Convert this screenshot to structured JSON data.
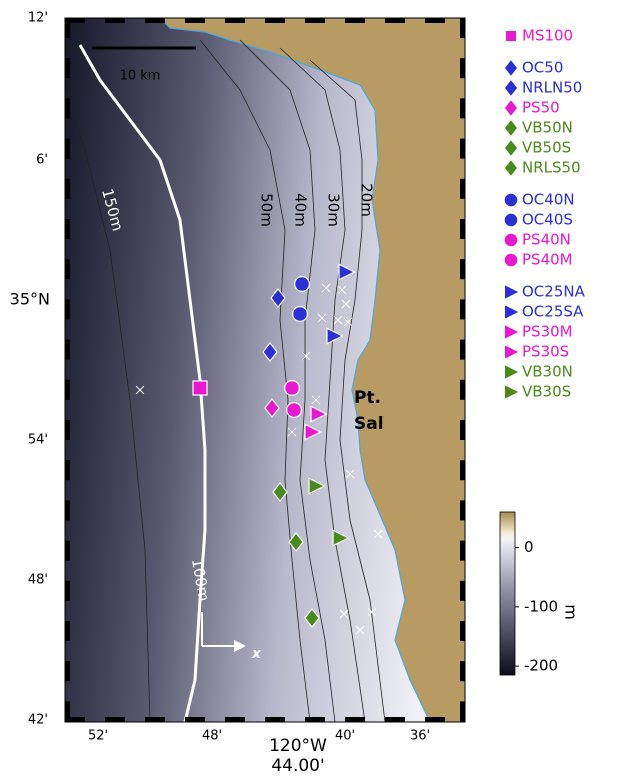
{
  "map": {
    "scale_bar": "10 km",
    "contour_labels": [
      "150m",
      "100m",
      "50m",
      "40m",
      "30m",
      "20m"
    ],
    "place": [
      "Pt.",
      "Sal"
    ],
    "axis_arrow": "x",
    "lat_ticks": [
      "12'",
      "6'",
      "35°N",
      "54'",
      "48'",
      "42'"
    ],
    "lon_ticks": [
      "52'",
      "48'",
      "40'",
      "36'"
    ],
    "lon_center": [
      "120°W",
      "44.00'"
    ]
  },
  "legend": [
    [
      {
        "label": "MS100",
        "marker": "square",
        "color": "#e817d0"
      }
    ],
    [
      {
        "label": "OC50",
        "marker": "diamond",
        "color": "#2a2fd6"
      },
      {
        "label": "NRLN50",
        "marker": "diamond",
        "color": "#2a2fd6"
      },
      {
        "label": "PS50",
        "marker": "diamond",
        "color": "#e817d0"
      },
      {
        "label": "VB50N",
        "marker": "diamond",
        "color": "#4a8a1a"
      },
      {
        "label": "VB50S",
        "marker": "diamond",
        "color": "#4a8a1a"
      },
      {
        "label": "NRLS50",
        "marker": "diamond",
        "color": "#4a8a1a"
      }
    ],
    [
      {
        "label": "OC40N",
        "marker": "circle",
        "color": "#2a2fd6"
      },
      {
        "label": "OC40S",
        "marker": "circle",
        "color": "#2a2fd6"
      },
      {
        "label": "PS40N",
        "marker": "circle",
        "color": "#e817d0"
      },
      {
        "label": "PS40M",
        "marker": "circle",
        "color": "#e817d0"
      }
    ],
    [
      {
        "label": "OC25NA",
        "marker": "triangle",
        "color": "#2a2fd6"
      },
      {
        "label": "OC25SA",
        "marker": "triangle",
        "color": "#2a2fd6"
      },
      {
        "label": "PS30M",
        "marker": "triangle",
        "color": "#e817d0"
      },
      {
        "label": "PS30S",
        "marker": "triangle",
        "color": "#e817d0"
      },
      {
        "label": "VB30N",
        "marker": "triangle",
        "color": "#4a8a1a"
      },
      {
        "label": "VB30S",
        "marker": "triangle",
        "color": "#4a8a1a"
      }
    ]
  ],
  "colorbar": {
    "label": "m",
    "range": [
      -215,
      60
    ],
    "ticks": [
      0,
      -100,
      -200
    ]
  }
}
